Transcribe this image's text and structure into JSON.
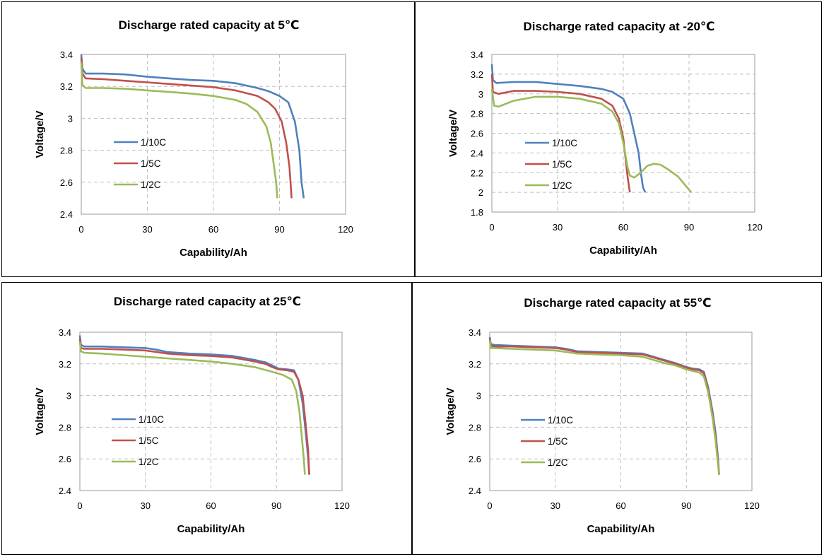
{
  "colors": {
    "1/10C": "#4f81bd",
    "1/5C": "#c0504d",
    "1/2C": "#9bbb59"
  },
  "chart_data": [
    {
      "type": "line",
      "title": "Discharge rated capacity at 5℃",
      "xlabel": "Capability/Ah",
      "ylabel": "Voltage/V",
      "xlim": [
        0,
        120
      ],
      "ylim": [
        2.4,
        3.4
      ],
      "xticks": [
        "0",
        "30",
        "60",
        "90",
        "120"
      ],
      "yticks": [
        "2.4",
        "2.6",
        "2.8",
        "3",
        "3.2",
        "3.4"
      ],
      "grid": true,
      "legend": "lower-left",
      "series": [
        {
          "name": "1/10C",
          "color": "#4f81bd",
          "points": [
            [
              0,
              3.4
            ],
            [
              0.5,
              3.31
            ],
            [
              2,
              3.28
            ],
            [
              10,
              3.28
            ],
            [
              20,
              3.275
            ],
            [
              30,
              3.26
            ],
            [
              40,
              3.25
            ],
            [
              50,
              3.24
            ],
            [
              60,
              3.235
            ],
            [
              70,
              3.22
            ],
            [
              80,
              3.19
            ],
            [
              85,
              3.17
            ],
            [
              90,
              3.14
            ],
            [
              94,
              3.1
            ],
            [
              97,
              2.98
            ],
            [
              99,
              2.8
            ],
            [
              100,
              2.6
            ],
            [
              101,
              2.5
            ]
          ]
        },
        {
          "name": "1/5C",
          "color": "#c0504d",
          "points": [
            [
              0,
              3.38
            ],
            [
              0.5,
              3.28
            ],
            [
              2,
              3.25
            ],
            [
              10,
              3.245
            ],
            [
              20,
              3.235
            ],
            [
              30,
              3.225
            ],
            [
              40,
              3.215
            ],
            [
              50,
              3.205
            ],
            [
              60,
              3.195
            ],
            [
              70,
              3.175
            ],
            [
              80,
              3.14
            ],
            [
              85,
              3.1
            ],
            [
              88,
              3.06
            ],
            [
              91,
              2.98
            ],
            [
              93,
              2.85
            ],
            [
              94.5,
              2.7
            ],
            [
              95,
              2.6
            ],
            [
              95.5,
              2.5
            ]
          ]
        },
        {
          "name": "1/2C",
          "color": "#9bbb59",
          "points": [
            [
              0,
              3.35
            ],
            [
              0.5,
              3.21
            ],
            [
              2,
              3.19
            ],
            [
              10,
              3.19
            ],
            [
              20,
              3.185
            ],
            [
              30,
              3.175
            ],
            [
              40,
              3.165
            ],
            [
              50,
              3.155
            ],
            [
              60,
              3.14
            ],
            [
              70,
              3.115
            ],
            [
              75,
              3.09
            ],
            [
              80,
              3.04
            ],
            [
              84,
              2.95
            ],
            [
              86,
              2.85
            ],
            [
              87.5,
              2.7
            ],
            [
              88.5,
              2.6
            ],
            [
              89,
              2.5
            ]
          ]
        }
      ]
    },
    {
      "type": "line",
      "title": "Discharge rated capacity at -20℃",
      "xlabel": "Capability/Ah",
      "ylabel": "Voltage/V",
      "xlim": [
        0,
        120
      ],
      "ylim": [
        1.8,
        3.4
      ],
      "xticks": [
        "0",
        "30",
        "60",
        "90",
        "120"
      ],
      "yticks": [
        "1.8",
        "2",
        "2.2",
        "2.4",
        "2.6",
        "2.8",
        "3",
        "3.2",
        "3.4"
      ],
      "grid": true,
      "legend": "lower-left",
      "series": [
        {
          "name": "1/10C",
          "color": "#4f81bd",
          "points": [
            [
              0,
              3.3
            ],
            [
              0.5,
              3.14
            ],
            [
              2,
              3.11
            ],
            [
              10,
              3.12
            ],
            [
              20,
              3.12
            ],
            [
              30,
              3.1
            ],
            [
              40,
              3.08
            ],
            [
              50,
              3.05
            ],
            [
              55,
              3.02
            ],
            [
              60,
              2.95
            ],
            [
              63,
              2.8
            ],
            [
              65,
              2.6
            ],
            [
              67,
              2.4
            ],
            [
              68,
              2.2
            ],
            [
              69,
              2.05
            ],
            [
              70,
              2.0
            ]
          ]
        },
        {
          "name": "1/5C",
          "color": "#c0504d",
          "points": [
            [
              0,
              3.2
            ],
            [
              0.5,
              3.02
            ],
            [
              3,
              3.0
            ],
            [
              10,
              3.03
            ],
            [
              20,
              3.03
            ],
            [
              30,
              3.02
            ],
            [
              40,
              3.0
            ],
            [
              50,
              2.95
            ],
            [
              55,
              2.88
            ],
            [
              58,
              2.75
            ],
            [
              60,
              2.55
            ],
            [
              61,
              2.35
            ],
            [
              62,
              2.15
            ],
            [
              63,
              2.0
            ]
          ]
        },
        {
          "name": "1/2C",
          "color": "#9bbb59",
          "points": [
            [
              0,
              3.05
            ],
            [
              1,
              2.88
            ],
            [
              3,
              2.87
            ],
            [
              10,
              2.93
            ],
            [
              20,
              2.97
            ],
            [
              30,
              2.97
            ],
            [
              40,
              2.95
            ],
            [
              50,
              2.9
            ],
            [
              55,
              2.82
            ],
            [
              58,
              2.7
            ],
            [
              60,
              2.5
            ],
            [
              62,
              2.25
            ],
            [
              63,
              2.17
            ],
            [
              65,
              2.15
            ],
            [
              68,
              2.2
            ],
            [
              71,
              2.27
            ],
            [
              74,
              2.29
            ],
            [
              77,
              2.28
            ],
            [
              80,
              2.24
            ],
            [
              85,
              2.16
            ],
            [
              88,
              2.08
            ],
            [
              91,
              2.0
            ]
          ]
        }
      ]
    },
    {
      "type": "line",
      "title": "Discharge rated capacity at 25℃",
      "xlabel": "Capability/Ah",
      "ylabel": "Voltage/V",
      "xlim": [
        0,
        120
      ],
      "ylim": [
        2.4,
        3.4
      ],
      "xticks": [
        "0",
        "30",
        "60",
        "90",
        "120"
      ],
      "yticks": [
        "2.4",
        "2.6",
        "2.8",
        "3",
        "3.2",
        "3.4"
      ],
      "grid": true,
      "legend": "lower-left",
      "series": [
        {
          "name": "1/10C",
          "color": "#4f81bd",
          "points": [
            [
              0,
              3.38
            ],
            [
              0.5,
              3.32
            ],
            [
              2,
              3.31
            ],
            [
              10,
              3.31
            ],
            [
              20,
              3.305
            ],
            [
              30,
              3.3
            ],
            [
              35,
              3.29
            ],
            [
              40,
              3.275
            ],
            [
              50,
              3.265
            ],
            [
              60,
              3.26
            ],
            [
              70,
              3.25
            ],
            [
              80,
              3.225
            ],
            [
              85,
              3.21
            ],
            [
              88,
              3.19
            ],
            [
              91,
              3.17
            ],
            [
              95,
              3.165
            ],
            [
              98,
              3.16
            ],
            [
              100,
              3.1
            ],
            [
              102,
              2.95
            ],
            [
              103.5,
              2.75
            ],
            [
              104.5,
              2.6
            ],
            [
              105,
              2.5
            ]
          ]
        },
        {
          "name": "1/5C",
          "color": "#c0504d",
          "points": [
            [
              0,
              3.36
            ],
            [
              0.5,
              3.3
            ],
            [
              2,
              3.295
            ],
            [
              10,
              3.295
            ],
            [
              20,
              3.29
            ],
            [
              30,
              3.285
            ],
            [
              35,
              3.275
            ],
            [
              40,
              3.265
            ],
            [
              50,
              3.255
            ],
            [
              60,
              3.25
            ],
            [
              70,
              3.24
            ],
            [
              80,
              3.215
            ],
            [
              85,
              3.2
            ],
            [
              88,
              3.18
            ],
            [
              91,
              3.165
            ],
            [
              95,
              3.16
            ],
            [
              98,
              3.15
            ],
            [
              100,
              3.1
            ],
            [
              102,
              3.0
            ],
            [
              103.5,
              2.8
            ],
            [
              104.5,
              2.65
            ],
            [
              105,
              2.5
            ]
          ]
        },
        {
          "name": "1/2C",
          "color": "#9bbb59",
          "points": [
            [
              0,
              3.34
            ],
            [
              0.5,
              3.28
            ],
            [
              2,
              3.27
            ],
            [
              10,
              3.265
            ],
            [
              20,
              3.255
            ],
            [
              30,
              3.245
            ],
            [
              40,
              3.235
            ],
            [
              50,
              3.225
            ],
            [
              60,
              3.215
            ],
            [
              70,
              3.2
            ],
            [
              80,
              3.18
            ],
            [
              88,
              3.15
            ],
            [
              93,
              3.13
            ],
            [
              97,
              3.1
            ],
            [
              99,
              3.03
            ],
            [
              100.5,
              2.9
            ],
            [
              101.5,
              2.75
            ],
            [
              102.5,
              2.6
            ],
            [
              103,
              2.5
            ]
          ]
        }
      ]
    },
    {
      "type": "line",
      "title": "Discharge rated capacity at 55℃",
      "xlabel": "Capability/Ah",
      "ylabel": "Voltage/V",
      "xlim": [
        0,
        120
      ],
      "ylim": [
        2.4,
        3.4
      ],
      "xticks": [
        "0",
        "30",
        "60",
        "90",
        "120"
      ],
      "yticks": [
        "2.4",
        "2.6",
        "2.8",
        "3",
        "3.2",
        "3.4"
      ],
      "grid": true,
      "legend": "lower-left",
      "series": [
        {
          "name": "1/10C",
          "color": "#4f81bd",
          "points": [
            [
              0,
              3.37
            ],
            [
              0.5,
              3.325
            ],
            [
              2,
              3.32
            ],
            [
              10,
              3.315
            ],
            [
              20,
              3.31
            ],
            [
              30,
              3.305
            ],
            [
              35,
              3.295
            ],
            [
              40,
              3.28
            ],
            [
              50,
              3.275
            ],
            [
              60,
              3.27
            ],
            [
              70,
              3.265
            ],
            [
              75,
              3.245
            ],
            [
              80,
              3.225
            ],
            [
              85,
              3.205
            ],
            [
              90,
              3.18
            ],
            [
              93,
              3.17
            ],
            [
              96,
              3.165
            ],
            [
              98,
              3.15
            ],
            [
              100,
              3.05
            ],
            [
              102,
              2.9
            ],
            [
              103.5,
              2.75
            ],
            [
              104.5,
              2.6
            ],
            [
              105,
              2.5
            ]
          ]
        },
        {
          "name": "1/5C",
          "color": "#c0504d",
          "points": [
            [
              0,
              3.36
            ],
            [
              0.5,
              3.315
            ],
            [
              2,
              3.31
            ],
            [
              10,
              3.31
            ],
            [
              20,
              3.305
            ],
            [
              30,
              3.3
            ],
            [
              35,
              3.29
            ],
            [
              40,
              3.275
            ],
            [
              50,
              3.27
            ],
            [
              60,
              3.265
            ],
            [
              70,
              3.26
            ],
            [
              75,
              3.24
            ],
            [
              80,
              3.22
            ],
            [
              85,
              3.2
            ],
            [
              90,
              3.175
            ],
            [
              93,
              3.165
            ],
            [
              96,
              3.16
            ],
            [
              98,
              3.14
            ],
            [
              100,
              3.04
            ],
            [
              102,
              2.88
            ],
            [
              103.5,
              2.72
            ],
            [
              104.5,
              2.58
            ],
            [
              105,
              2.5
            ]
          ]
        },
        {
          "name": "1/2C",
          "color": "#9bbb59",
          "points": [
            [
              0,
              3.35
            ],
            [
              0.5,
              3.3
            ],
            [
              2,
              3.3
            ],
            [
              10,
              3.295
            ],
            [
              20,
              3.29
            ],
            [
              30,
              3.285
            ],
            [
              35,
              3.275
            ],
            [
              40,
              3.265
            ],
            [
              50,
              3.26
            ],
            [
              60,
              3.255
            ],
            [
              70,
              3.245
            ],
            [
              75,
              3.225
            ],
            [
              80,
              3.205
            ],
            [
              85,
              3.19
            ],
            [
              90,
              3.165
            ],
            [
              93,
              3.155
            ],
            [
              96,
              3.145
            ],
            [
              98,
              3.12
            ],
            [
              100,
              3.02
            ],
            [
              102,
              2.86
            ],
            [
              103.5,
              2.7
            ],
            [
              104.5,
              2.56
            ],
            [
              105,
              2.5
            ]
          ]
        }
      ]
    }
  ]
}
